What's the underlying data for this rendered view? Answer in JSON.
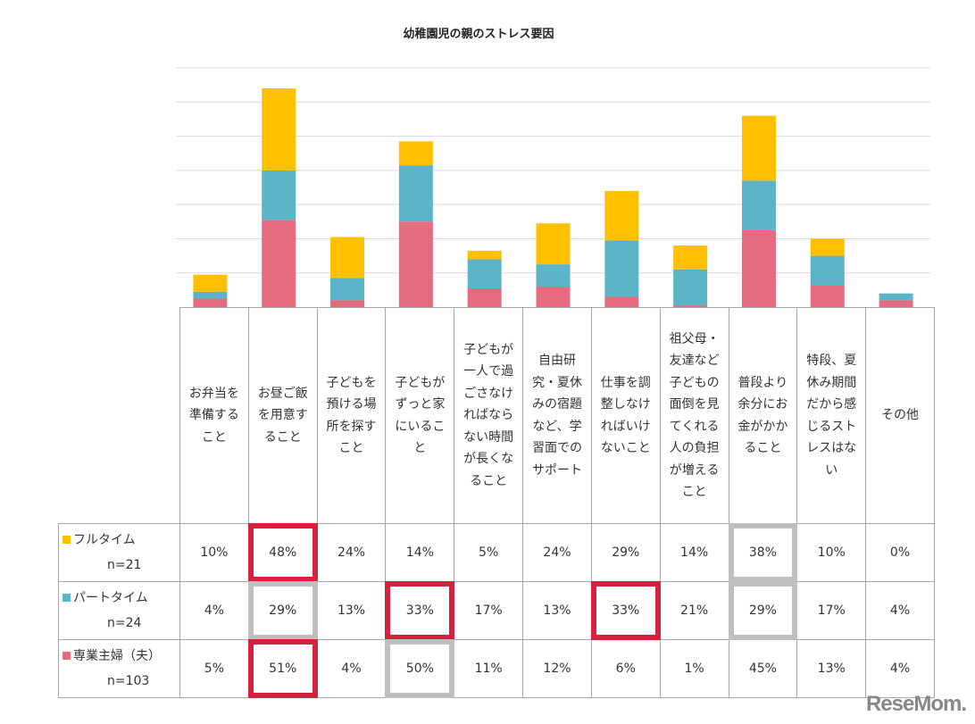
{
  "chart_data": {
    "type": "bar",
    "stacked": true,
    "title": "幼稚園児の親のストレス要因",
    "ylim": [
      0,
      140
    ],
    "grid": true,
    "categories": [
      "お弁当を\n準備する\nこと",
      "お昼ご飯\nを用意す\nること",
      "子どもを\n預ける場\n所を探す\nこと",
      "子どもが\nずっと家\nにいるこ\nと",
      "子どもが\n一人で過\nごさなけ\nればなら\nない時間\nが長くな\nること",
      "自由研\n究・夏休\nみの宿題\nなど、学\n習面での\nサポート",
      "仕事を調\n整しなけ\nればいけ\nないこと",
      "祖父母・\n友達など\n子どもの\n面倒を見\nてくれる\n人の負担\nが増える\nこと",
      "普段より\n余分にお\n金がかか\nること",
      "特段、夏\n休み期間\nだから感\nじるスト\nレスはな\nい",
      "その他"
    ],
    "series": [
      {
        "name": "フルタイム",
        "n": "n=21",
        "color": "#FFC000",
        "values": [
          10,
          48,
          24,
          14,
          5,
          24,
          29,
          14,
          38,
          10,
          0
        ]
      },
      {
        "name": "パートタイム",
        "n": "n=24",
        "color": "#5BB4C8",
        "values": [
          4,
          29,
          13,
          33,
          17,
          13,
          33,
          21,
          29,
          17,
          4
        ]
      },
      {
        "name": "専業主婦（夫）",
        "n": "n=103",
        "color": "#E56C7E",
        "values": [
          5,
          51,
          4,
          50,
          11,
          12,
          6,
          1,
          45,
          13,
          4
        ]
      }
    ],
    "highlights_red": [
      [
        0,
        1
      ],
      [
        1,
        3
      ],
      [
        1,
        6
      ],
      [
        2,
        1
      ]
    ],
    "highlights_gray": [
      [
        0,
        8
      ],
      [
        1,
        1
      ],
      [
        1,
        8
      ],
      [
        2,
        3
      ]
    ],
    "red": "#D6213F",
    "gray": "#BFBFBF"
  },
  "logo": "ReseMom"
}
